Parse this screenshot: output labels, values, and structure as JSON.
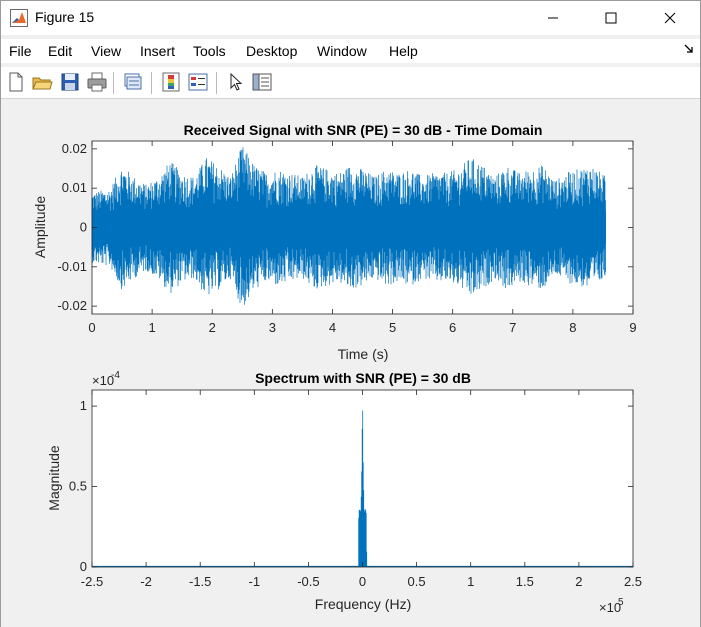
{
  "window": {
    "title": "Figure 15"
  },
  "menu": {
    "items": [
      "File",
      "Edit",
      "View",
      "Insert",
      "Tools",
      "Desktop",
      "Window",
      "Help"
    ]
  },
  "toolbar": {
    "buttons": [
      "new-figure-icon",
      "open-file-icon",
      "save-icon",
      "print-icon",
      "link-plot-icon",
      "insert-colorbar-icon",
      "insert-legend-icon",
      "pointer-icon",
      "property-inspector-icon"
    ]
  },
  "plot_style": {
    "line_color": "#0072bd",
    "axes_color": "#262626"
  },
  "chart_data": [
    {
      "type": "line",
      "title": "Received Signal with SNR (PE) = 30 dB - Time Domain",
      "xlabel": "Time (s)",
      "ylabel": "Amplitude",
      "xlim": [
        0,
        9
      ],
      "ylim": [
        -0.022,
        0.022
      ],
      "xticks": [
        "0",
        "1",
        "2",
        "3",
        "4",
        "5",
        "6",
        "7",
        "8",
        "9"
      ],
      "yticks": [
        "0.02",
        "0.01",
        "0",
        "-0.01",
        "-0.02"
      ],
      "signal_duration": 8.55,
      "envelope": {
        "t": [
          0,
          0.3,
          0.5,
          0.7,
          0.9,
          1.1,
          1.3,
          1.5,
          1.7,
          1.9,
          2.1,
          2.3,
          2.5,
          2.7,
          2.9,
          3.1,
          3.3,
          3.5,
          3.7,
          3.9,
          4.1,
          4.3,
          4.5,
          4.7,
          4.9,
          5.1,
          5.3,
          5.5,
          5.7,
          5.9,
          6.1,
          6.3,
          6.5,
          6.7,
          6.9,
          7.1,
          7.3,
          7.5,
          7.7,
          7.9,
          8.1,
          8.3,
          8.55
        ],
        "amp": [
          0.009,
          0.01,
          0.016,
          0.013,
          0.011,
          0.013,
          0.017,
          0.014,
          0.013,
          0.018,
          0.016,
          0.013,
          0.021,
          0.016,
          0.014,
          0.015,
          0.014,
          0.013,
          0.016,
          0.015,
          0.014,
          0.016,
          0.015,
          0.013,
          0.015,
          0.014,
          0.015,
          0.013,
          0.014,
          0.014,
          0.015,
          0.018,
          0.016,
          0.013,
          0.016,
          0.014,
          0.015,
          0.016,
          0.012,
          0.014,
          0.015,
          0.016,
          0.013
        ]
      }
    },
    {
      "type": "line",
      "title": "Spectrum with SNR (PE) = 30 dB",
      "xlabel": "Frequency (Hz)",
      "ylabel": "Magnitude",
      "xlim": [
        -2.5,
        2.5
      ],
      "ylim": [
        0,
        1.1
      ],
      "x_exponent_label": "×10",
      "x_exponent": "5",
      "y_exponent_label": "×10",
      "y_exponent": "-4",
      "xticks": [
        "-2.5",
        "-2",
        "-1.5",
        "-1",
        "-0.5",
        "0",
        "0.5",
        "1",
        "1.5",
        "2",
        "2.5"
      ],
      "yticks": [
        "1",
        "0.5",
        "0"
      ],
      "spectrum": {
        "x": [
          -0.04,
          -0.035,
          -0.03,
          -0.02,
          -0.015,
          -0.01,
          -0.005,
          0,
          0.005,
          0.01,
          0.015,
          0.02,
          0.03,
          0.035,
          0.04
        ],
        "y": [
          0.0,
          0.33,
          0.36,
          0.34,
          0.36,
          0.5,
          0.7,
          1.1,
          0.7,
          0.5,
          0.36,
          0.34,
          0.36,
          0.33,
          0.0
        ]
      }
    }
  ]
}
